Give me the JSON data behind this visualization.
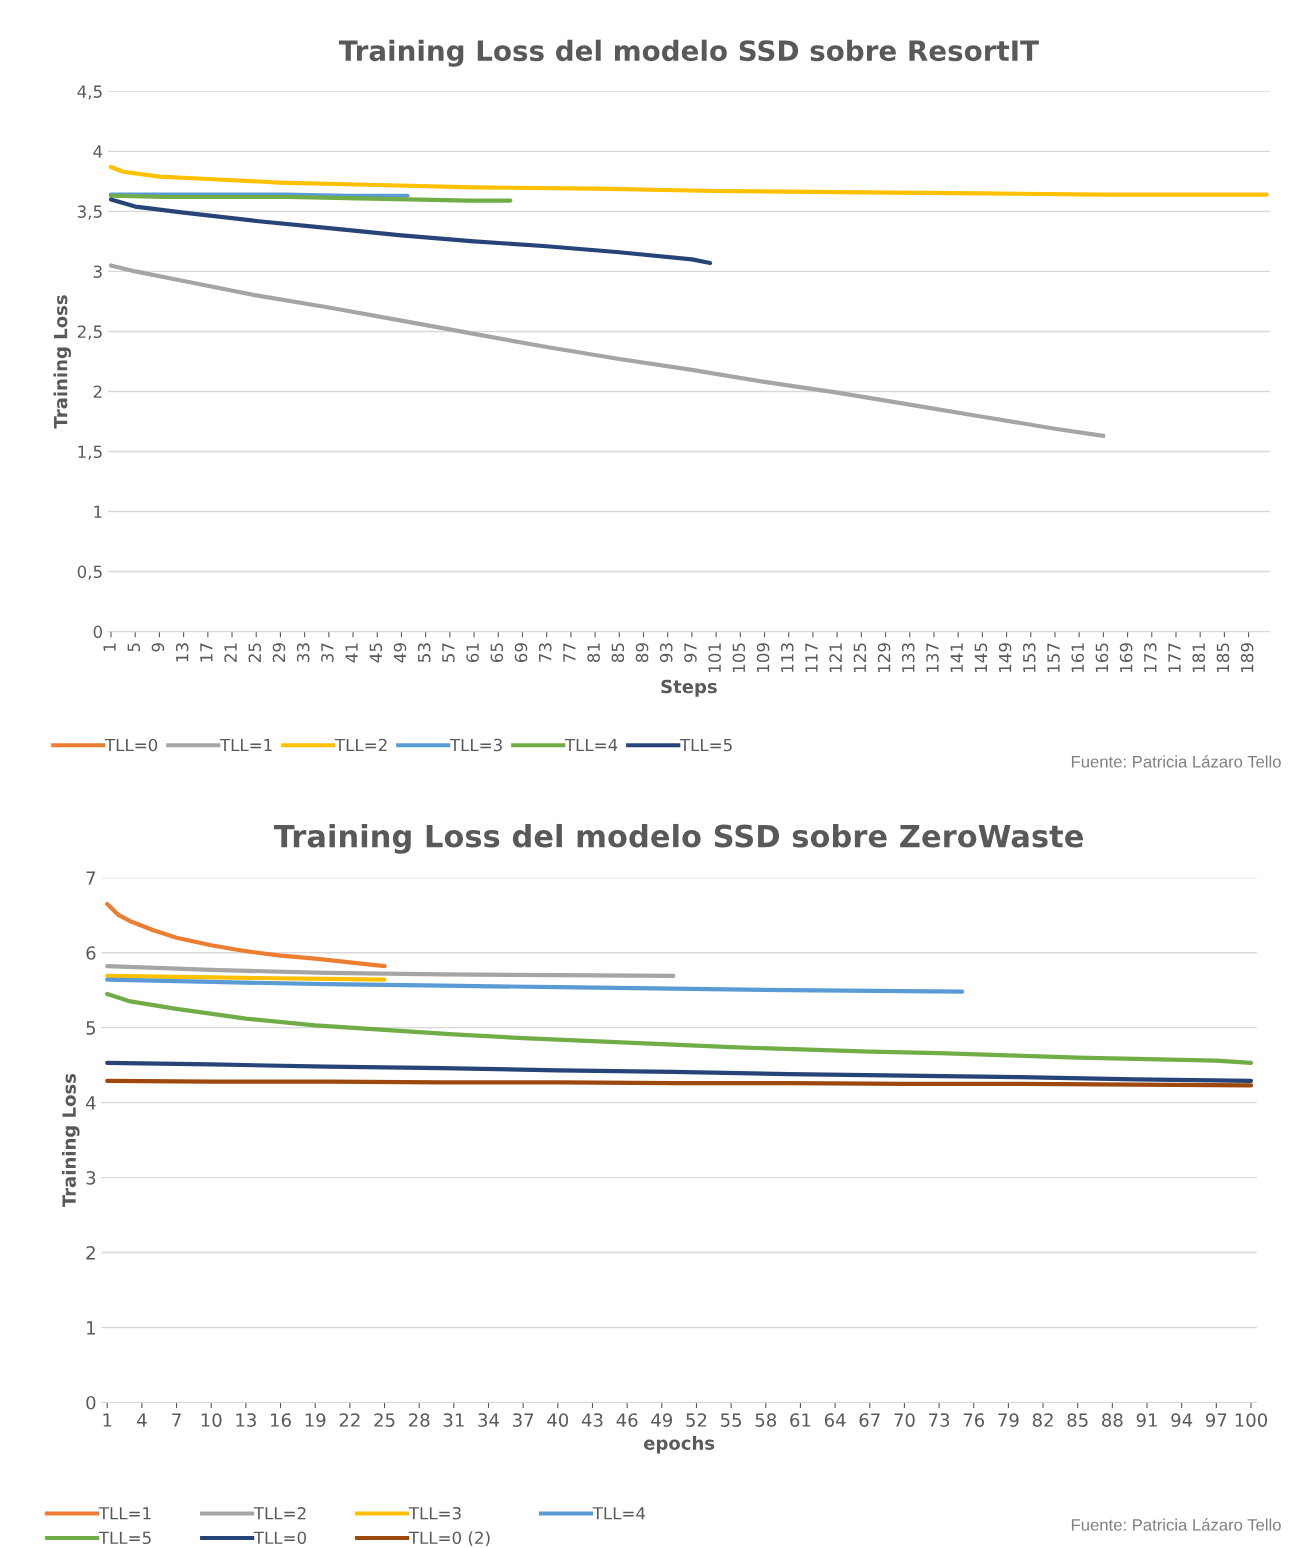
{
  "chart_data": [
    {
      "type": "line",
      "title": "Training Loss del modelo SSD sobre ResortIT",
      "xlabel": "Steps",
      "ylabel": "Training Loss",
      "xlim": [
        0.5,
        192.5
      ],
      "xticks": [
        1,
        5,
        9,
        13,
        17,
        21,
        25,
        29,
        33,
        37,
        41,
        45,
        49,
        53,
        57,
        61,
        65,
        69,
        73,
        77,
        81,
        85,
        89,
        93,
        97,
        101,
        105,
        109,
        113,
        117,
        121,
        125,
        129,
        133,
        137,
        141,
        145,
        149,
        153,
        157,
        161,
        165,
        169,
        173,
        177,
        181,
        185,
        189
      ],
      "ylim": [
        0,
        4.5
      ],
      "yticks": [
        0,
        {
          "value": 0.5,
          "label": "0,5"
        },
        1,
        {
          "value": 1.5,
          "label": "1,5"
        },
        2,
        {
          "value": 2.5,
          "label": "2,5"
        },
        3,
        {
          "value": 3.5,
          "label": "3,5"
        },
        4,
        {
          "value": 4.5,
          "label": "4,5"
        }
      ],
      "grid": "y",
      "legend": "bottom",
      "line_style": "solid",
      "marker": "none",
      "annotations": [
        "Fuente: Patricia Lázaro Tello"
      ],
      "series": [
        {
          "name": "TLL=0",
          "color": "#ed7d31"
        },
        {
          "name": "TLL=1",
          "color": "#a5a5a5",
          "x": [
            1,
            5,
            13,
            25,
            37,
            49,
            61,
            73,
            85,
            97,
            109,
            121,
            133,
            145,
            157,
            165
          ],
          "values": [
            3.05,
            3.0,
            2.92,
            2.8,
            2.7,
            2.59,
            2.48,
            2.37,
            2.27,
            2.18,
            2.08,
            1.99,
            1.89,
            1.79,
            1.69,
            1.63
          ]
        },
        {
          "name": "TLL=2",
          "color": "#ffc000",
          "x": [
            1,
            3,
            9,
            17,
            29,
            45,
            61,
            81,
            101,
            121,
            145,
            165,
            185,
            192
          ],
          "values": [
            3.87,
            3.83,
            3.79,
            3.77,
            3.74,
            3.72,
            3.7,
            3.69,
            3.67,
            3.66,
            3.65,
            3.64,
            3.64,
            3.64
          ]
        },
        {
          "name": "TLL=3",
          "color": "#5b9bd5",
          "x": [
            1,
            10,
            20,
            30,
            40,
            50
          ],
          "values": [
            3.64,
            3.64,
            3.64,
            3.64,
            3.63,
            3.63
          ]
        },
        {
          "name": "TLL=4",
          "color": "#70ad47",
          "x": [
            1,
            10,
            20,
            30,
            40,
            50,
            60,
            67
          ],
          "values": [
            3.63,
            3.62,
            3.62,
            3.62,
            3.61,
            3.6,
            3.59,
            3.59
          ]
        },
        {
          "name": "TLL=5",
          "color": "#264478",
          "x": [
            1,
            5,
            13,
            25,
            37,
            49,
            61,
            73,
            85,
            97,
            100
          ],
          "values": [
            3.6,
            3.54,
            3.49,
            3.42,
            3.36,
            3.3,
            3.25,
            3.21,
            3.16,
            3.1,
            3.07
          ]
        }
      ]
    },
    {
      "type": "line",
      "title": "Training Loss del modelo SSD sobre ZeroWaste",
      "xlabel": "epochs",
      "ylabel": "Training Loss",
      "xlim": [
        0.5,
        100.5
      ],
      "xticks": [
        1,
        4,
        7,
        10,
        13,
        16,
        19,
        22,
        25,
        28,
        31,
        34,
        37,
        40,
        43,
        46,
        49,
        52,
        55,
        58,
        61,
        64,
        67,
        70,
        73,
        76,
        79,
        82,
        85,
        88,
        91,
        94,
        97,
        100
      ],
      "ylim": [
        0,
        7
      ],
      "yticks": [
        0,
        1,
        2,
        3,
        4,
        5,
        6,
        7
      ],
      "grid": "y",
      "legend": "bottom",
      "line_style": "solid",
      "marker": "none",
      "annotations": [
        "Fuente: Patricia Lázaro Tello"
      ],
      "series": [
        {
          "name": "TLL=1",
          "color": "#ed7d31",
          "x": [
            1,
            2,
            3,
            5,
            7,
            10,
            13,
            16,
            19,
            22,
            25
          ],
          "values": [
            6.65,
            6.5,
            6.42,
            6.3,
            6.2,
            6.1,
            6.02,
            5.96,
            5.92,
            5.87,
            5.82
          ]
        },
        {
          "name": "TLL=2",
          "color": "#a5a5a5",
          "x": [
            1,
            10,
            20,
            30,
            40,
            50
          ],
          "values": [
            5.82,
            5.77,
            5.73,
            5.71,
            5.7,
            5.69
          ]
        },
        {
          "name": "TLL=3",
          "color": "#ffc000",
          "x": [
            1,
            10,
            20,
            25
          ],
          "values": [
            5.69,
            5.67,
            5.65,
            5.64
          ]
        },
        {
          "name": "TLL=4",
          "color": "#5b9bd5",
          "x": [
            1,
            10,
            20,
            30,
            40,
            50,
            60,
            75
          ],
          "values": [
            5.64,
            5.61,
            5.58,
            5.56,
            5.54,
            5.52,
            5.5,
            5.48
          ]
        },
        {
          "name": "TLL=5",
          "color": "#70ad47",
          "x": [
            1,
            3,
            7,
            13,
            19,
            25,
            31,
            37,
            43,
            49,
            55,
            61,
            67,
            73,
            79,
            85,
            91,
            97,
            100
          ],
          "values": [
            5.45,
            5.35,
            5.25,
            5.12,
            5.03,
            4.97,
            4.91,
            4.86,
            4.82,
            4.78,
            4.74,
            4.71,
            4.68,
            4.66,
            4.63,
            4.6,
            4.58,
            4.56,
            4.53
          ]
        },
        {
          "name": "TLL=0",
          "color": "#264478",
          "x": [
            1,
            10,
            20,
            30,
            40,
            50,
            60,
            70,
            80,
            90,
            100
          ],
          "values": [
            4.53,
            4.51,
            4.48,
            4.46,
            4.43,
            4.41,
            4.38,
            4.36,
            4.34,
            4.31,
            4.29
          ]
        },
        {
          "name": "TLL=0 (2)",
          "color": "#9e480e",
          "x": [
            1,
            10,
            20,
            30,
            40,
            50,
            60,
            70,
            80,
            90,
            100
          ],
          "values": [
            4.29,
            4.28,
            4.28,
            4.27,
            4.27,
            4.26,
            4.26,
            4.25,
            4.25,
            4.24,
            4.23
          ]
        }
      ]
    }
  ]
}
